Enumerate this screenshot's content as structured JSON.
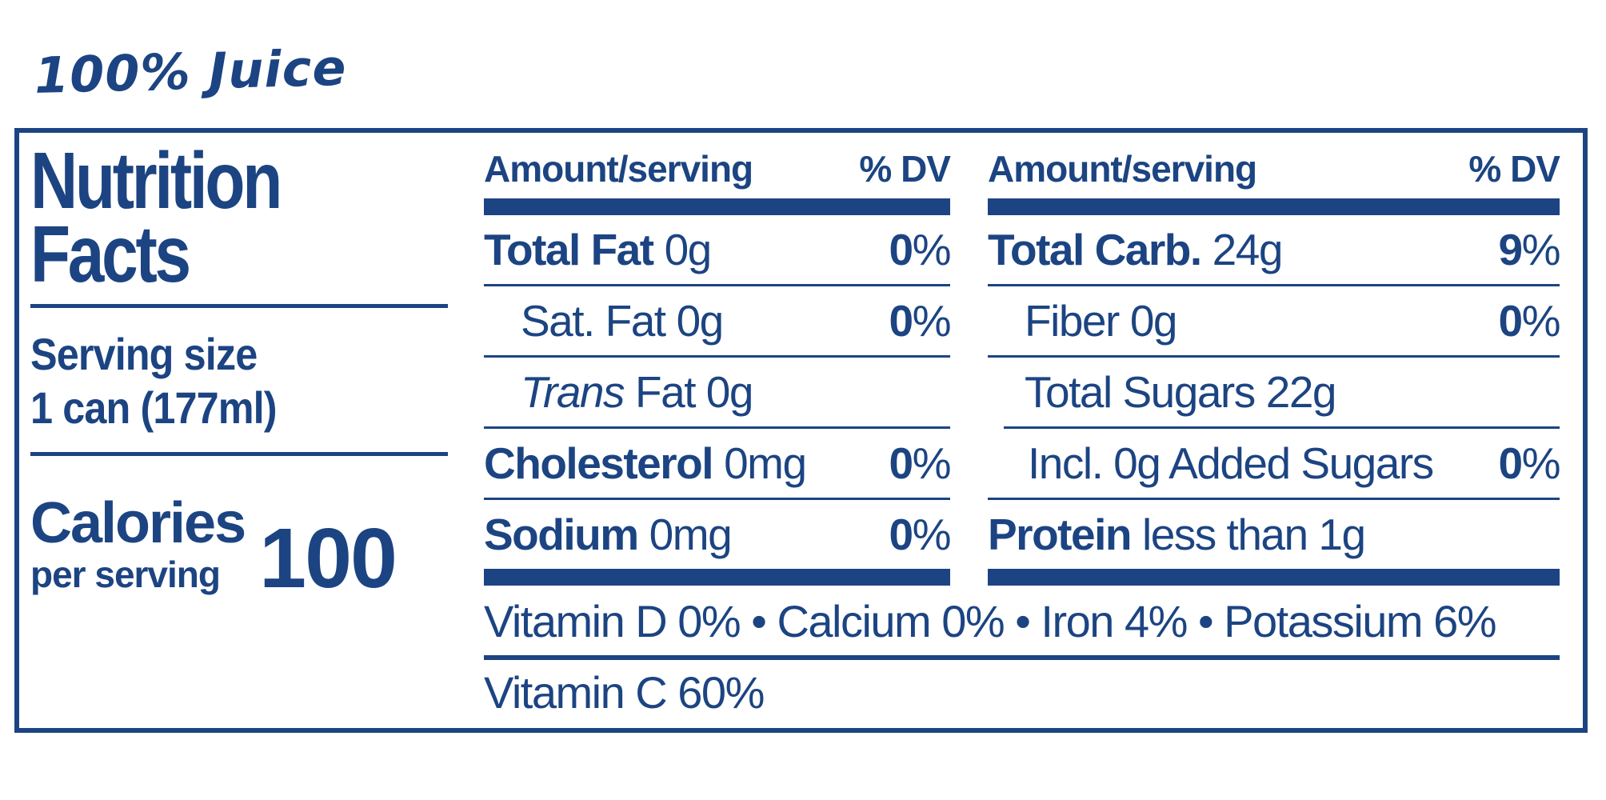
{
  "colors": {
    "blue": "#1C4482"
  },
  "product": {
    "label": "100% Juice"
  },
  "panel": {
    "title_line1": "Nutrition",
    "title_line2": "Facts",
    "serving": {
      "label": "Serving size",
      "value": "1 can (177ml)"
    },
    "calories": {
      "label": "Calories",
      "sublabel": "per serving",
      "value": "100"
    },
    "percent_sign": "%",
    "columns": [
      {
        "header": {
          "amount": "Amount/serving",
          "dv": "% DV"
        },
        "rows": [
          {
            "name": "Total Fat",
            "value": "0g",
            "dv": "0",
            "style": "bold",
            "indent": 0,
            "sep": "thin"
          },
          {
            "name": "Sat. Fat",
            "value": "0g",
            "dv": "0",
            "style": "plain",
            "indent": 1,
            "sep": "thin"
          },
          {
            "name": "Trans",
            "value": "Fat 0g",
            "dv": null,
            "style": "italic",
            "indent": 1,
            "sep": "thin"
          },
          {
            "name": "Cholesterol",
            "value": "0mg",
            "dv": "0",
            "style": "bold",
            "indent": 0,
            "sep": "thin"
          },
          {
            "name": "Sodium",
            "value": "0mg",
            "dv": "0",
            "style": "bold",
            "indent": 0,
            "sep": "thick"
          }
        ]
      },
      {
        "header": {
          "amount": "Amount/serving",
          "dv": "% DV"
        },
        "rows": [
          {
            "name": "Total Carb.",
            "value": "24g",
            "dv": "9",
            "style": "bold",
            "indent": 0,
            "sep": "thin"
          },
          {
            "name": "Fiber",
            "value": "0g",
            "dv": "0",
            "style": "plain",
            "indent": 1,
            "sep": "thin"
          },
          {
            "name": "Total Sugars",
            "value": "22g",
            "dv": null,
            "style": "plain",
            "indent": 1,
            "sep": "thin-indent"
          },
          {
            "name": "Incl. 0g Added Sugars",
            "value": "",
            "dv": "0",
            "style": "plain",
            "indent": 2,
            "sep": "thin"
          },
          {
            "name": "Protein",
            "value": "less than 1g",
            "dv": null,
            "style": "bold",
            "indent": 0,
            "sep": "thick"
          }
        ]
      }
    ],
    "micronutrients": {
      "line1": "Vitamin D 0% • Calcium 0% • Iron 4% • Potassium 6%",
      "line2": "Vitamin C 60%"
    }
  }
}
